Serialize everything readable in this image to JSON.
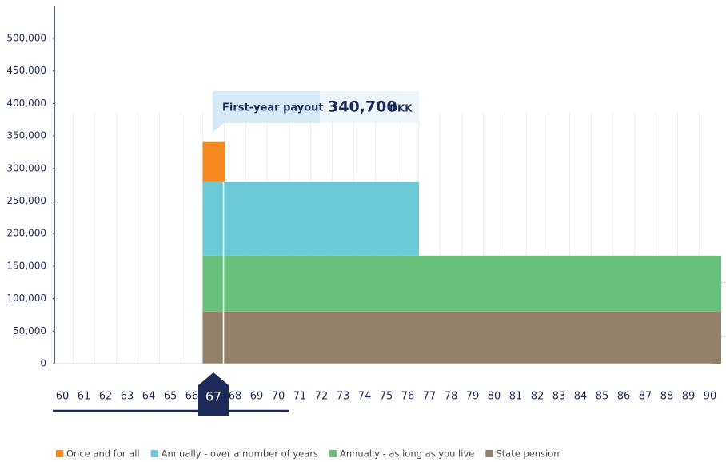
{
  "chart_data": {
    "type": "stacked-bar",
    "categories": [
      "60",
      "61",
      "62",
      "63",
      "64",
      "65",
      "66",
      "67",
      "68",
      "69",
      "70",
      "71",
      "72",
      "73",
      "74",
      "75",
      "76",
      "77",
      "78",
      "79",
      "80",
      "81",
      "82",
      "83",
      "84",
      "85",
      "86",
      "87",
      "88",
      "89",
      "90"
    ],
    "series": [
      {
        "name": "State pension",
        "color": "#938068",
        "values": [
          null,
          null,
          null,
          null,
          null,
          null,
          null,
          80000,
          80000,
          80000,
          80000,
          80000,
          80000,
          80000,
          80000,
          80000,
          80000,
          80000,
          80000,
          80000,
          80000,
          80000,
          80000,
          80000,
          80000,
          80000,
          80000,
          80000,
          80000,
          80000,
          80000
        ]
      },
      {
        "name": "Annually - as long as you live",
        "color": "#66bf7b",
        "values": [
          null,
          null,
          null,
          null,
          null,
          null,
          null,
          86000,
          86000,
          86000,
          86000,
          86000,
          86000,
          86000,
          86000,
          86000,
          86000,
          86000,
          86000,
          86000,
          86000,
          86000,
          86000,
          86000,
          86000,
          86000,
          86000,
          86000,
          86000,
          86000,
          86000
        ]
      },
      {
        "name": "Annually - over a number of years",
        "color": "#6ccad6",
        "values": [
          null,
          null,
          null,
          null,
          null,
          null,
          null,
          113000,
          113000,
          113000,
          113000,
          113000,
          113000,
          113000,
          113000,
          113000,
          113000,
          null,
          null,
          null,
          null,
          null,
          null,
          null,
          null,
          null,
          null,
          null,
          null,
          null,
          null
        ]
      },
      {
        "name": "Once and for all",
        "color": "#f5891f",
        "values": [
          null,
          null,
          null,
          null,
          null,
          null,
          null,
          61700,
          null,
          null,
          null,
          null,
          null,
          null,
          null,
          null,
          null,
          null,
          null,
          null,
          null,
          null,
          null,
          null,
          null,
          null,
          null,
          null,
          null,
          null,
          null
        ]
      }
    ],
    "legend_order": [
      3,
      2,
      1,
      0
    ],
    "ylim": [
      0,
      500000
    ],
    "yticks": [
      0,
      {
        "value": 50000,
        "label": "50,000"
      },
      {
        "value": 100000,
        "label": "100,000"
      },
      {
        "value": 150000,
        "label": "150,000"
      },
      {
        "value": 200000,
        "label": "200,000"
      },
      {
        "value": 250000,
        "label": "250,000"
      },
      {
        "value": 300000,
        "label": "300,000"
      },
      {
        "value": 350000,
        "label": "350,000"
      },
      {
        "value": 400000,
        "label": "400,000"
      },
      {
        "value": 450000,
        "label": "450,000"
      },
      {
        "value": 500000,
        "label": "500,000"
      }
    ],
    "selected": "67",
    "tooltip": {
      "label": "First-year payout",
      "value": "340,700",
      "unit": "DKK"
    },
    "continuation": "..."
  }
}
